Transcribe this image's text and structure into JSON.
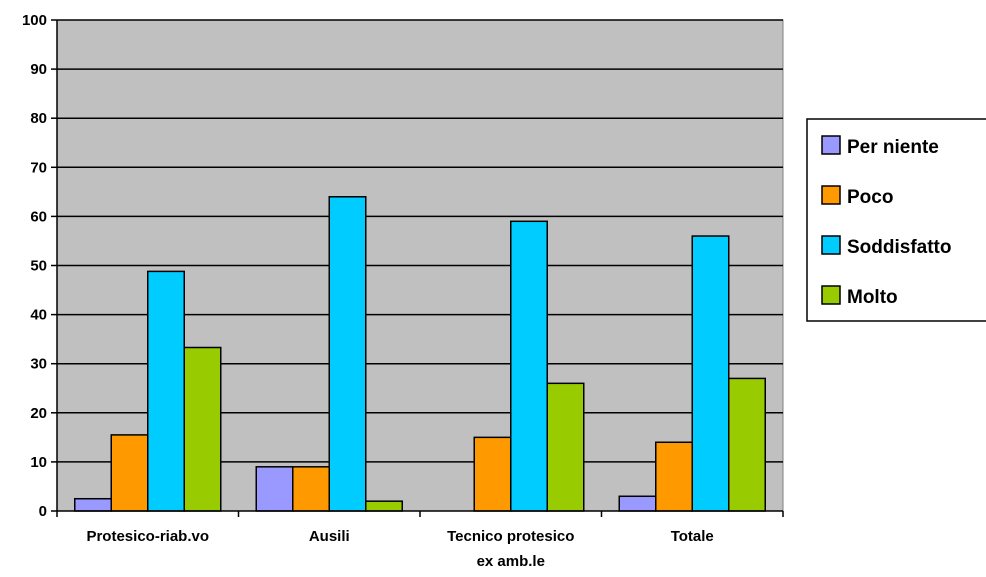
{
  "chart_data": {
    "type": "bar",
    "title": "",
    "xlabel": "",
    "ylabel": "",
    "ylim": [
      0,
      100
    ],
    "yticks": [
      0,
      10,
      20,
      30,
      40,
      50,
      60,
      70,
      80,
      90,
      100
    ],
    "grid": true,
    "legend_position": "right",
    "plot_background": "#c0c0c0",
    "categories": [
      [
        "Protesico-riab.vo"
      ],
      [
        "Ausili"
      ],
      [
        "Tecnico protesico",
        "ex amb.le"
      ],
      [
        "Totale"
      ]
    ],
    "series": [
      {
        "name": "Per niente",
        "color": "#9999ff",
        "values": [
          2.5,
          9,
          0,
          3
        ]
      },
      {
        "name": "Poco",
        "color": "#ff9900",
        "values": [
          15.5,
          9,
          15,
          14
        ]
      },
      {
        "name": "Soddisfatto",
        "color": "#00ccff",
        "values": [
          48.8,
          64,
          59,
          56
        ]
      },
      {
        "name": "Molto",
        "color": "#99cc00",
        "values": [
          33.3,
          2,
          26,
          27
        ]
      }
    ]
  }
}
